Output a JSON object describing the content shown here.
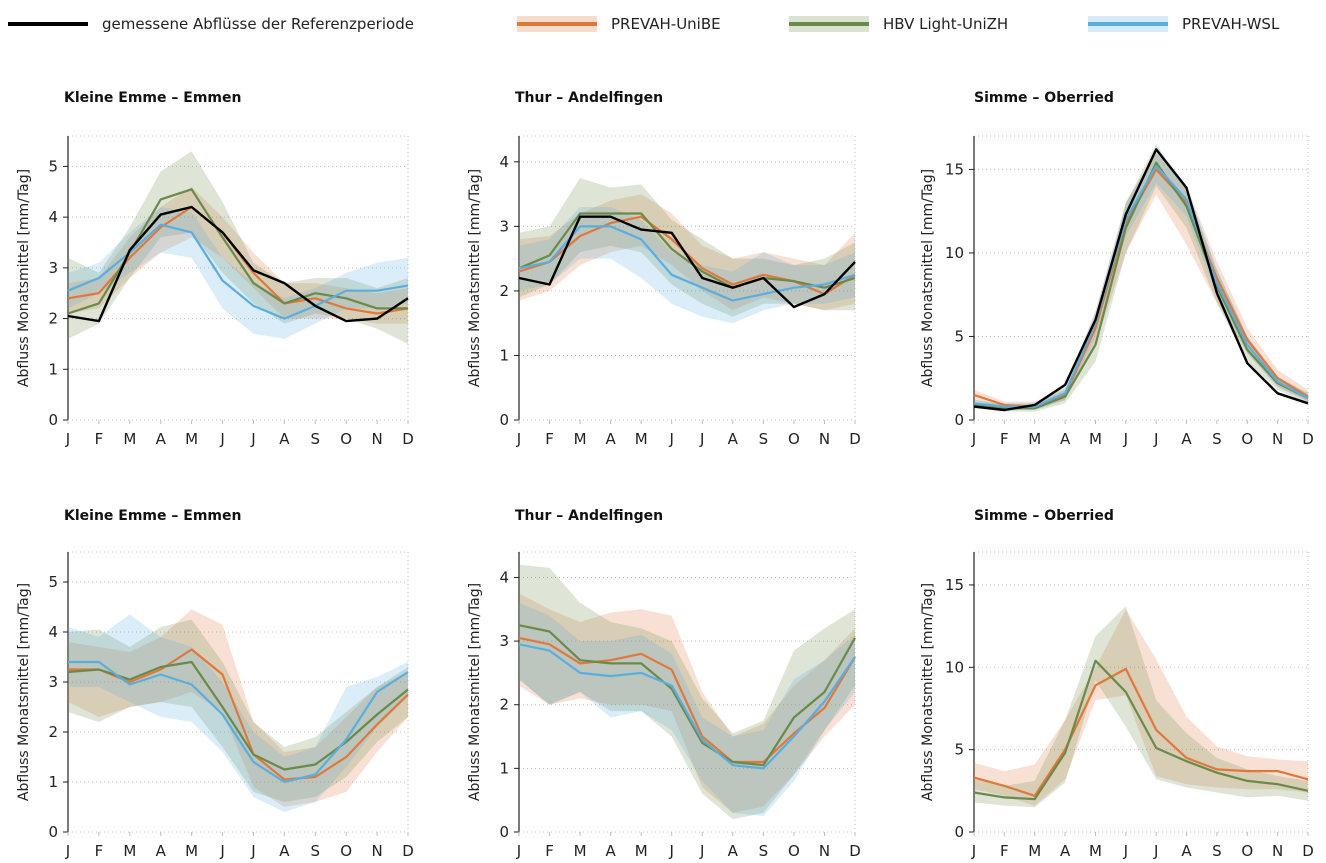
{
  "legend": {
    "observed": "gemessene Abflüsse der Referenzperiode",
    "model_1": "PREVAH-UniBE",
    "model_2": "HBV Light-UniZH",
    "model_3": "PREVAH-WSL"
  },
  "colors": {
    "observed": "#000000",
    "model_1": "#e0783a",
    "model_2": "#6a8a4a",
    "model_3": "#5aaedf",
    "grid": "#bbbbbb",
    "axis": "#222222"
  },
  "chart_data": [
    {
      "type": "line",
      "title": "Kleine Emme – Emmen",
      "ylabel": "Abfluss Monatsmittel [mm/Tag]",
      "categories": [
        "J",
        "F",
        "M",
        "A",
        "M",
        "J",
        "J",
        "A",
        "S",
        "O",
        "N",
        "D"
      ],
      "ylim": [
        0,
        5.6
      ],
      "yticks": [
        0,
        1,
        2,
        3,
        4,
        5
      ],
      "grid": true,
      "series": [
        {
          "key": "model_1",
          "name": "PREVAH-UniBE",
          "values": [
            2.4,
            2.5,
            3.2,
            3.8,
            4.2,
            3.7,
            2.9,
            2.3,
            2.4,
            2.2,
            2.1,
            2.2
          ],
          "band_low": [
            2.1,
            2.2,
            2.8,
            3.3,
            3.6,
            3.2,
            2.6,
            2.0,
            2.0,
            2.0,
            1.9,
            1.9
          ],
          "band_high": [
            2.7,
            2.8,
            3.6,
            4.2,
            4.6,
            4.0,
            3.3,
            2.7,
            2.7,
            2.6,
            2.5,
            2.6
          ]
        },
        {
          "key": "model_2",
          "name": "HBV Light-UniZH",
          "values": [
            2.1,
            2.3,
            3.3,
            4.35,
            4.55,
            3.6,
            2.7,
            2.3,
            2.5,
            2.4,
            2.2,
            2.2
          ],
          "band_low": [
            1.6,
            1.9,
            2.8,
            3.6,
            3.7,
            2.9,
            2.3,
            1.9,
            2.1,
            2.0,
            1.8,
            1.5
          ],
          "band_high": [
            3.2,
            2.9,
            3.8,
            4.9,
            5.3,
            4.3,
            3.1,
            2.7,
            2.8,
            2.8,
            2.6,
            2.8
          ]
        },
        {
          "key": "model_3",
          "name": "PREVAH-WSL",
          "values": [
            2.55,
            2.8,
            3.3,
            3.85,
            3.7,
            2.75,
            2.25,
            2.0,
            2.25,
            2.55,
            2.55,
            2.65
          ],
          "band_low": [
            2.2,
            2.5,
            2.9,
            3.3,
            3.2,
            2.2,
            1.7,
            1.6,
            1.9,
            2.2,
            2.2,
            2.3
          ],
          "band_high": [
            2.9,
            3.1,
            3.7,
            4.2,
            4.1,
            3.2,
            2.7,
            2.4,
            2.6,
            2.9,
            3.1,
            3.2
          ]
        },
        {
          "key": "observed",
          "name": "gemessene Abflüsse der Referenzperiode",
          "values": [
            2.05,
            1.95,
            3.35,
            4.05,
            4.2,
            3.7,
            2.95,
            2.7,
            2.25,
            1.95,
            2.0,
            2.4
          ]
        }
      ]
    },
    {
      "type": "line",
      "title": "Thur – Andelfingen",
      "ylabel": "Abfluss Monatsmittel [mm/Tag]",
      "categories": [
        "J",
        "F",
        "M",
        "A",
        "M",
        "J",
        "J",
        "A",
        "S",
        "O",
        "N",
        "D"
      ],
      "ylim": [
        0,
        4.4
      ],
      "yticks": [
        0,
        1,
        2,
        3,
        4
      ],
      "grid": true,
      "series": [
        {
          "key": "model_1",
          "name": "PREVAH-UniBE",
          "values": [
            2.3,
            2.45,
            2.85,
            3.05,
            3.15,
            2.8,
            2.35,
            2.1,
            2.25,
            2.15,
            1.95,
            2.25
          ],
          "band_low": [
            1.85,
            2.0,
            2.4,
            2.6,
            2.7,
            2.4,
            2.0,
            1.7,
            1.9,
            1.8,
            1.7,
            1.8
          ],
          "band_high": [
            2.8,
            2.85,
            3.2,
            3.4,
            3.5,
            3.2,
            2.7,
            2.5,
            2.6,
            2.5,
            2.4,
            2.9
          ]
        },
        {
          "key": "model_2",
          "name": "HBV Light-UniZH",
          "values": [
            2.35,
            2.55,
            3.2,
            3.2,
            3.2,
            2.65,
            2.3,
            2.05,
            2.2,
            2.15,
            2.05,
            2.2
          ],
          "band_low": [
            1.9,
            2.1,
            2.6,
            2.7,
            2.6,
            2.1,
            1.8,
            1.6,
            1.8,
            1.8,
            1.7,
            1.7
          ],
          "band_high": [
            2.9,
            3.0,
            3.75,
            3.6,
            3.65,
            3.1,
            2.8,
            2.5,
            2.5,
            2.4,
            2.5,
            2.75
          ]
        },
        {
          "key": "model_3",
          "name": "PREVAH-WSL",
          "values": [
            2.35,
            2.45,
            3.0,
            3.0,
            2.8,
            2.25,
            2.05,
            1.85,
            1.95,
            2.05,
            2.1,
            2.25
          ],
          "band_low": [
            2.0,
            2.1,
            2.5,
            2.5,
            2.2,
            1.8,
            1.6,
            1.5,
            1.7,
            1.8,
            1.8,
            1.9
          ],
          "band_high": [
            2.7,
            2.8,
            3.3,
            3.3,
            3.1,
            2.6,
            2.4,
            2.3,
            2.6,
            2.4,
            2.4,
            2.6
          ]
        },
        {
          "key": "observed",
          "name": "gemessene Abflüsse der Referenzperiode",
          "values": [
            2.2,
            2.1,
            3.15,
            3.15,
            2.95,
            2.9,
            2.2,
            2.05,
            2.2,
            1.75,
            1.95,
            2.45
          ]
        }
      ]
    },
    {
      "type": "line",
      "title": "Simme – Oberried",
      "ylabel": "Abfluss Monatsmittel [mm/Tag]",
      "categories": [
        "J",
        "F",
        "M",
        "A",
        "M",
        "J",
        "J",
        "A",
        "S",
        "O",
        "N",
        "D"
      ],
      "ylim": [
        0,
        17
      ],
      "yticks": [
        0,
        5,
        10,
        15
      ],
      "grid": true,
      "series": [
        {
          "key": "model_1",
          "name": "PREVAH-UniBE",
          "values": [
            1.5,
            0.9,
            0.8,
            1.5,
            5.5,
            11.8,
            15.0,
            13.0,
            8.5,
            4.8,
            2.5,
            1.4
          ],
          "band_low": [
            1.2,
            0.7,
            0.6,
            1.2,
            4.5,
            10.0,
            13.5,
            10.5,
            7.0,
            4.0,
            2.0,
            1.1
          ],
          "band_high": [
            1.8,
            1.1,
            1.1,
            1.9,
            6.5,
            13.0,
            16.0,
            14.0,
            9.5,
            5.5,
            3.0,
            1.8
          ]
        },
        {
          "key": "model_2",
          "name": "HBV Light-UniZH",
          "values": [
            0.9,
            0.7,
            0.7,
            1.4,
            4.5,
            11.5,
            15.4,
            12.8,
            8.0,
            4.2,
            2.2,
            1.3
          ],
          "band_low": [
            0.7,
            0.5,
            0.5,
            1.0,
            3.5,
            10.0,
            14.0,
            11.5,
            7.0,
            3.5,
            1.8,
            1.0
          ],
          "band_high": [
            1.2,
            0.9,
            1.0,
            1.8,
            5.5,
            13.0,
            16.5,
            13.8,
            9.0,
            5.0,
            2.6,
            1.6
          ]
        },
        {
          "key": "model_3",
          "name": "PREVAH-WSL",
          "values": [
            1.0,
            0.8,
            0.8,
            1.6,
            5.8,
            12.0,
            15.2,
            13.2,
            8.2,
            4.5,
            2.3,
            1.3
          ],
          "band_low": [
            0.8,
            0.6,
            0.6,
            1.2,
            5.0,
            11.0,
            14.2,
            12.2,
            7.5,
            4.0,
            2.0,
            1.1
          ],
          "band_high": [
            1.2,
            1.0,
            1.0,
            2.0,
            6.5,
            13.0,
            16.0,
            14.0,
            9.0,
            5.0,
            2.6,
            1.6
          ]
        },
        {
          "key": "observed",
          "name": "gemessene Abflüsse der Referenzperiode",
          "values": [
            0.8,
            0.6,
            0.9,
            2.1,
            6.0,
            12.3,
            16.2,
            13.9,
            7.6,
            3.4,
            1.6,
            1.0
          ]
        }
      ]
    },
    {
      "type": "line",
      "title": "Kleine Emme – Emmen",
      "ylabel": "Abfluss Monatsmittel [mm/Tag]",
      "categories": [
        "J",
        "F",
        "M",
        "A",
        "M",
        "J",
        "J",
        "A",
        "S",
        "O",
        "N",
        "D"
      ],
      "ylim": [
        0,
        5.6
      ],
      "yticks": [
        0,
        1,
        2,
        3,
        4,
        5
      ],
      "grid": true,
      "series": [
        {
          "key": "model_1",
          "name": "PREVAH-UniBE",
          "values": [
            3.25,
            3.25,
            3.0,
            3.25,
            3.65,
            3.15,
            1.55,
            1.05,
            1.1,
            1.5,
            2.15,
            2.75
          ],
          "band_low": [
            2.6,
            2.3,
            2.5,
            2.6,
            2.8,
            2.4,
            0.9,
            0.5,
            0.6,
            0.8,
            1.6,
            2.3
          ],
          "band_high": [
            3.8,
            3.7,
            3.6,
            3.9,
            4.45,
            4.15,
            2.2,
            1.6,
            1.7,
            2.3,
            2.9,
            3.2
          ]
        },
        {
          "key": "model_2",
          "name": "HBV Light-UniZH",
          "values": [
            3.2,
            3.25,
            3.05,
            3.3,
            3.4,
            2.5,
            1.55,
            1.25,
            1.35,
            1.8,
            2.35,
            2.85
          ],
          "band_low": [
            2.4,
            2.2,
            2.5,
            2.6,
            2.5,
            1.7,
            0.8,
            0.6,
            0.7,
            1.1,
            1.8,
            2.3
          ],
          "band_high": [
            4.0,
            4.05,
            3.7,
            4.1,
            4.25,
            3.4,
            2.2,
            1.7,
            1.9,
            2.4,
            2.9,
            3.3
          ]
        },
        {
          "key": "model_3",
          "name": "PREVAH-WSL",
          "values": [
            3.4,
            3.4,
            2.95,
            3.15,
            2.95,
            2.35,
            1.4,
            1.0,
            1.15,
            1.85,
            2.8,
            3.2
          ],
          "band_low": [
            2.9,
            2.9,
            2.6,
            2.3,
            2.2,
            1.6,
            0.7,
            0.4,
            0.6,
            1.3,
            2.1,
            2.7
          ],
          "band_high": [
            4.1,
            3.9,
            4.35,
            3.9,
            3.7,
            3.0,
            2.0,
            1.5,
            1.7,
            2.9,
            3.1,
            3.4
          ]
        }
      ]
    },
    {
      "type": "line",
      "title": "Thur – Andelfingen",
      "ylabel": "Abfluss Monatsmittel [mm/Tag]",
      "categories": [
        "J",
        "F",
        "M",
        "A",
        "M",
        "J",
        "J",
        "A",
        "S",
        "O",
        "N",
        "D"
      ],
      "ylim": [
        0,
        4.4
      ],
      "yticks": [
        0,
        1,
        2,
        3,
        4
      ],
      "grid": true,
      "series": [
        {
          "key": "model_1",
          "name": "PREVAH-UniBE",
          "values": [
            3.05,
            2.95,
            2.65,
            2.7,
            2.8,
            2.55,
            1.5,
            1.1,
            1.1,
            1.55,
            1.95,
            2.75
          ],
          "band_low": [
            2.3,
            2.0,
            2.1,
            2.0,
            2.0,
            1.9,
            0.7,
            0.3,
            0.4,
            0.9,
            1.5,
            2.0
          ],
          "band_high": [
            3.75,
            3.5,
            3.3,
            3.45,
            3.5,
            3.4,
            2.2,
            1.5,
            1.7,
            2.3,
            2.7,
            3.2
          ]
        },
        {
          "key": "model_2",
          "name": "HBV Light-UniZH",
          "values": [
            3.25,
            3.15,
            2.7,
            2.65,
            2.65,
            2.25,
            1.4,
            1.1,
            1.05,
            1.8,
            2.2,
            3.05
          ],
          "band_low": [
            2.4,
            2.0,
            2.2,
            1.9,
            1.9,
            1.5,
            0.6,
            0.2,
            0.3,
            0.9,
            1.6,
            2.3
          ],
          "band_high": [
            4.2,
            4.15,
            3.6,
            3.3,
            3.2,
            3.0,
            2.1,
            1.55,
            1.75,
            2.85,
            3.2,
            3.5
          ]
        },
        {
          "key": "model_3",
          "name": "PREVAH-WSL",
          "values": [
            2.95,
            2.85,
            2.5,
            2.45,
            2.5,
            2.3,
            1.45,
            1.05,
            1.0,
            1.5,
            2.05,
            2.75
          ],
          "band_low": [
            2.4,
            2.0,
            2.2,
            1.8,
            1.9,
            1.6,
            0.8,
            0.3,
            0.25,
            0.8,
            1.6,
            2.2
          ],
          "band_high": [
            3.6,
            3.4,
            3.0,
            3.0,
            3.1,
            2.8,
            1.8,
            1.5,
            1.6,
            2.4,
            2.7,
            3.1
          ]
        }
      ]
    },
    {
      "type": "line",
      "title": "Simme – Oberried",
      "ylabel": "Abfluss Monatsmittel [mm/Tag]",
      "categories": [
        "J",
        "F",
        "M",
        "A",
        "M",
        "J",
        "J",
        "A",
        "S",
        "O",
        "N",
        "D"
      ],
      "ylim": [
        0,
        17
      ],
      "yticks": [
        0,
        5,
        10,
        15
      ],
      "grid": true,
      "series": [
        {
          "key": "model_1",
          "name": "PREVAH-UniBE",
          "values": [
            3.3,
            2.8,
            2.2,
            5.0,
            8.9,
            9.9,
            6.2,
            4.5,
            3.8,
            3.7,
            3.7,
            3.2
          ],
          "band_low": [
            2.6,
            2.2,
            1.6,
            3.2,
            8.0,
            8.3,
            3.4,
            2.9,
            2.7,
            2.6,
            2.6,
            2.4
          ],
          "band_high": [
            4.2,
            3.7,
            4.1,
            6.8,
            10.0,
            13.5,
            10.5,
            7.0,
            5.2,
            4.6,
            4.4,
            4.3
          ]
        },
        {
          "key": "model_2",
          "name": "HBV Light-UniZH",
          "values": [
            2.4,
            2.1,
            2.0,
            4.8,
            10.4,
            8.5,
            5.1,
            4.3,
            3.6,
            3.1,
            2.9,
            2.5
          ],
          "band_low": [
            1.8,
            1.6,
            1.5,
            3.0,
            9.2,
            6.4,
            3.2,
            2.7,
            2.4,
            2.1,
            2.2,
            1.9
          ],
          "band_high": [
            3.2,
            2.8,
            3.1,
            6.8,
            11.9,
            13.7,
            8.0,
            6.0,
            4.5,
            3.8,
            3.4,
            3.1
          ]
        }
      ]
    }
  ]
}
